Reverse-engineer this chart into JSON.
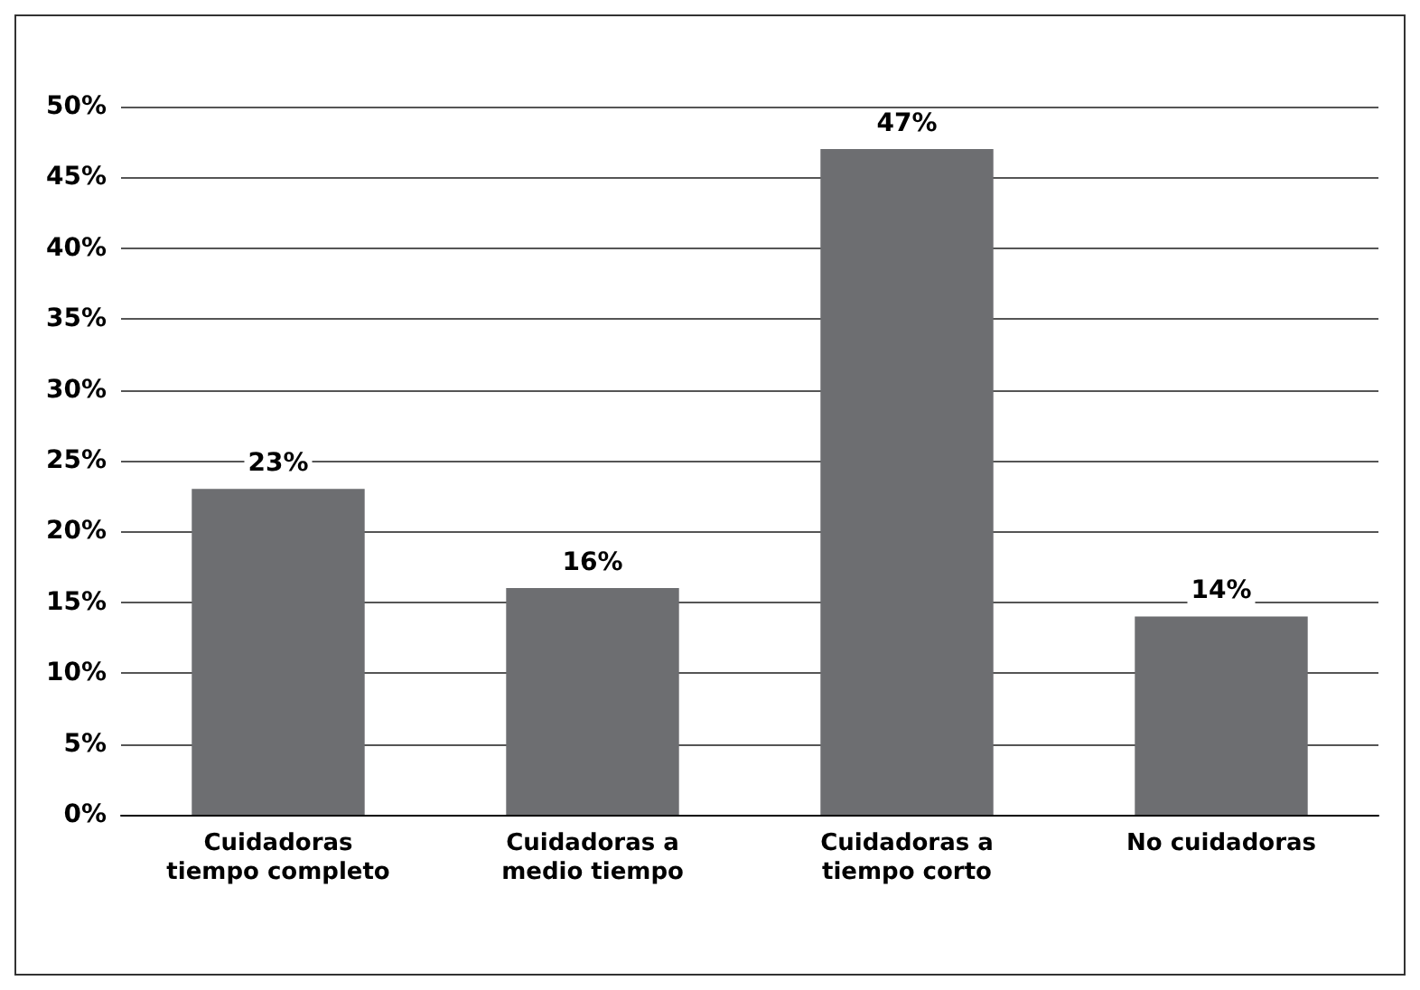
{
  "chart_data": {
    "type": "bar",
    "categories": [
      "Cuidadoras\ntiempo completo",
      "Cuidadoras a\nmedio tiempo",
      "Cuidadoras a\ntiempo corto",
      "No cuidadoras"
    ],
    "values": [
      23,
      16,
      47,
      14
    ],
    "value_labels": [
      "23%",
      "16%",
      "47%",
      "14%"
    ],
    "color": "#6d6e71",
    "ylim": [
      0,
      50
    ],
    "yticks": [
      {
        "value": 0,
        "label": "0%"
      },
      {
        "value": 5,
        "label": "5%"
      },
      {
        "value": 10,
        "label": "10%"
      },
      {
        "value": 15,
        "label": "15%"
      },
      {
        "value": 20,
        "label": "20%"
      },
      {
        "value": 25,
        "label": "25%"
      },
      {
        "value": 30,
        "label": "30%"
      },
      {
        "value": 35,
        "label": "35%"
      },
      {
        "value": 40,
        "label": "40%"
      },
      {
        "value": 45,
        "label": "45%"
      },
      {
        "value": 50,
        "label": "50%"
      }
    ],
    "grid": "y"
  }
}
